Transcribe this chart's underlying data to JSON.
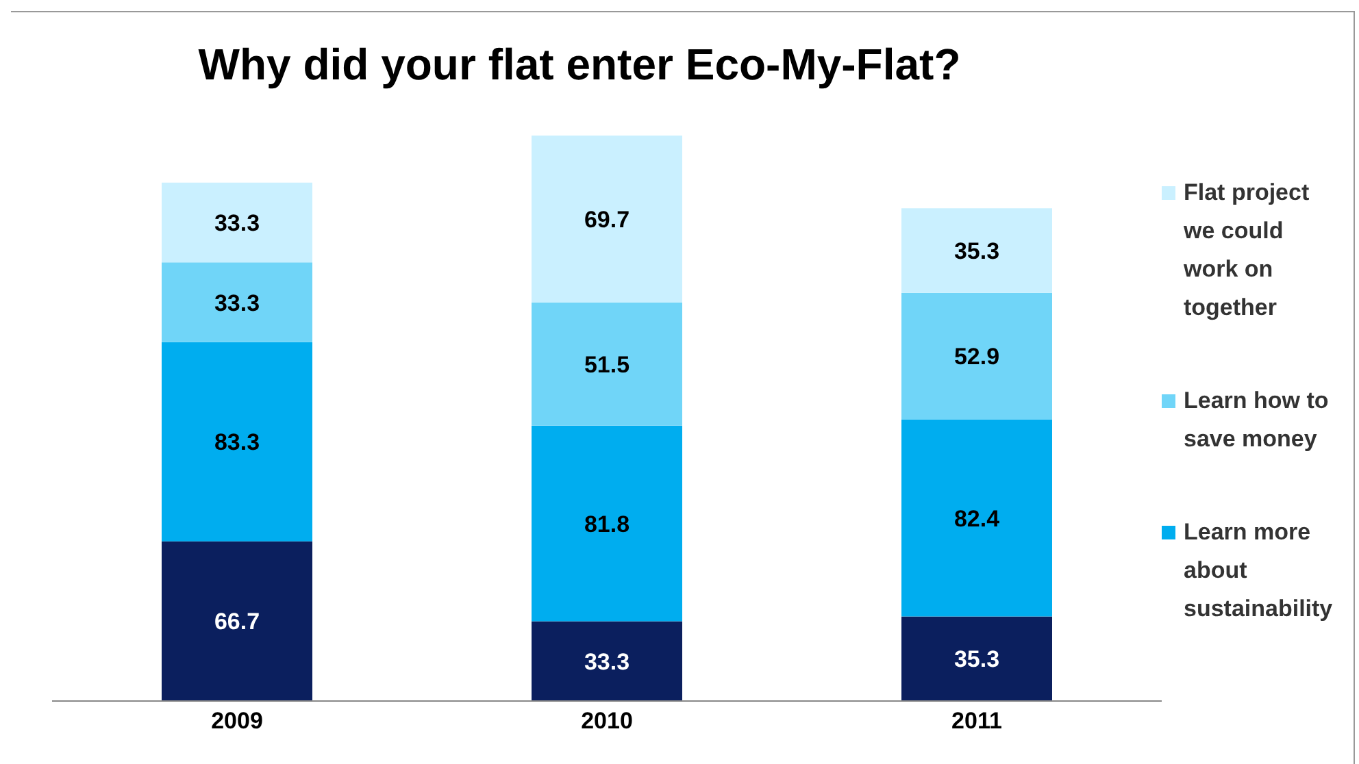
{
  "chart_data": {
    "type": "bar",
    "title": "Why did your flat enter Eco-My-Flat?",
    "categories": [
      "2009",
      "2010",
      "2011"
    ],
    "stacked": true,
    "data_labels": true,
    "legend": "right",
    "grid": false,
    "series": [
      {
        "color": "#0b1f5e",
        "values": [
          66.7,
          33.3,
          35.3
        ]
      },
      {
        "name": "Learn more about sustainability",
        "color": "#00adef",
        "values": [
          83.3,
          81.8,
          82.4
        ]
      },
      {
        "name": "Learn how to save money",
        "color": "#70d5f8",
        "values": [
          33.3,
          51.5,
          52.9
        ]
      },
      {
        "name": "Flat project we could work on together",
        "color": "#caf0ff",
        "values": [
          33.3,
          69.7,
          35.3
        ]
      }
    ]
  }
}
